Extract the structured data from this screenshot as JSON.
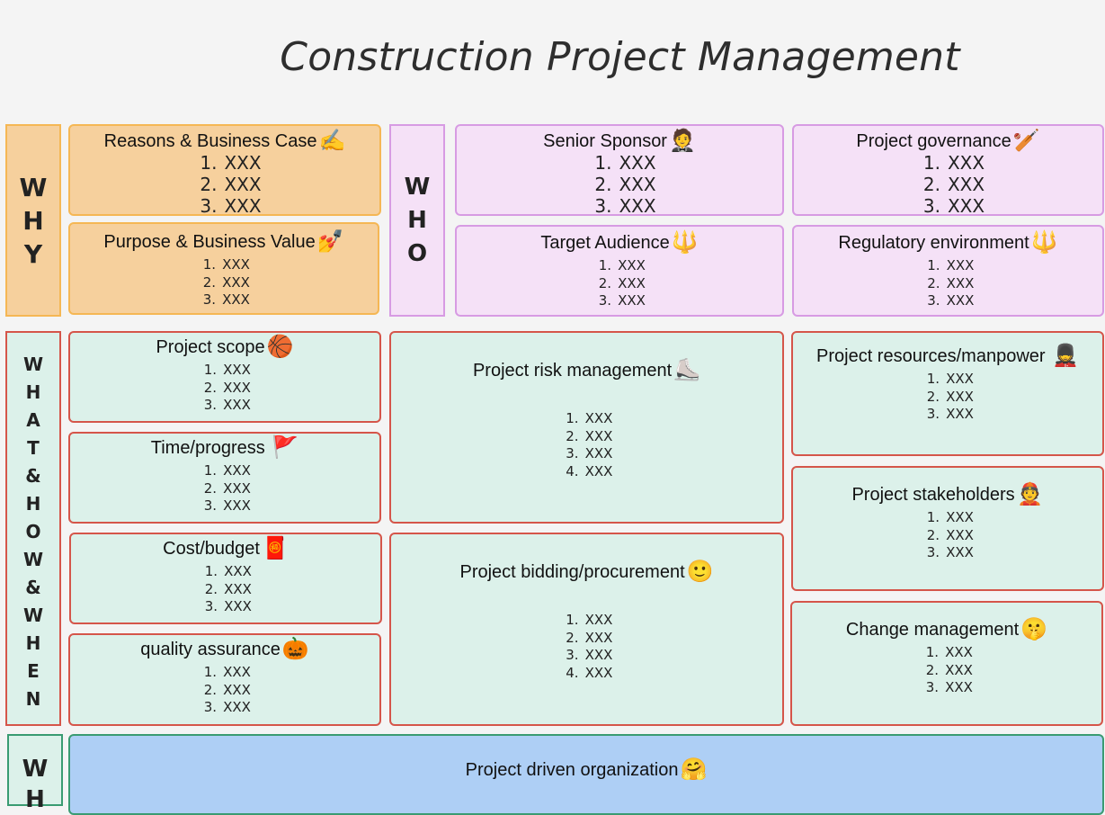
{
  "title": "Construction Project Management",
  "labels": {
    "why": [
      "W",
      "H",
      "Y"
    ],
    "who": [
      "W",
      "H",
      "O"
    ],
    "what": [
      "W",
      "H",
      "A",
      "T",
      "&",
      "H",
      "O",
      "W",
      "&",
      "W",
      "H",
      "E",
      "N"
    ],
    "bottom": [
      "W",
      "H"
    ]
  },
  "boxes": {
    "reasons": {
      "title": "Reasons & Business Case",
      "emoji": "✍️",
      "items": [
        {
          "n": "1.",
          "t": "XXX"
        },
        {
          "n": "2.",
          "t": "XXX"
        },
        {
          "n": "3.",
          "t": "XXX"
        }
      ]
    },
    "purpose": {
      "title": "Purpose & Business Value",
      "emoji": "💅",
      "items": [
        {
          "n": "1.",
          "t": "XXX"
        },
        {
          "n": "2.",
          "t": "XXX"
        },
        {
          "n": "3.",
          "t": "XXX"
        }
      ]
    },
    "sponsor": {
      "title": "Senior Sponsor",
      "emoji": "🤵",
      "items": [
        {
          "n": "1.",
          "t": "XXX"
        },
        {
          "n": "2.",
          "t": "XXX"
        },
        {
          "n": "3.",
          "t": "XXX"
        }
      ]
    },
    "governance": {
      "title": "Project governance",
      "emoji": "🏏",
      "items": [
        {
          "n": "1.",
          "t": "XXX"
        },
        {
          "n": "2.",
          "t": "XXX"
        },
        {
          "n": "3.",
          "t": "XXX"
        }
      ]
    },
    "audience": {
      "title": "Target Audience",
      "emoji": "🔱",
      "items": [
        {
          "n": "1.",
          "t": "XXX"
        },
        {
          "n": "2.",
          "t": "XXX"
        },
        {
          "n": "3.",
          "t": "XXX"
        }
      ]
    },
    "regulatory": {
      "title": "Regulatory environment",
      "emoji": "🔱",
      "items": [
        {
          "n": "1.",
          "t": "XXX"
        },
        {
          "n": "2.",
          "t": "XXX"
        },
        {
          "n": "3.",
          "t": "XXX"
        }
      ]
    },
    "scope": {
      "title": "Project scope",
      "emoji": "🏀",
      "items": [
        {
          "n": "1.",
          "t": "XXX"
        },
        {
          "n": "2.",
          "t": "XXX"
        },
        {
          "n": "3.",
          "t": "XXX"
        }
      ]
    },
    "time": {
      "title": "Time/progress ",
      "emoji": "🚩",
      "items": [
        {
          "n": "1.",
          "t": "XXX"
        },
        {
          "n": "2.",
          "t": "XXX"
        },
        {
          "n": "3.",
          "t": "XXX"
        }
      ]
    },
    "cost": {
      "title": "Cost/budget",
      "emoji": "🧧",
      "items": [
        {
          "n": "1.",
          "t": "XXX"
        },
        {
          "n": "2.",
          "t": "XXX"
        },
        {
          "n": "3.",
          "t": "XXX"
        }
      ]
    },
    "quality": {
      "title": "quality assurance",
      "emoji": "🎃",
      "items": [
        {
          "n": "1.",
          "t": "XXX"
        },
        {
          "n": "2.",
          "t": "XXX"
        },
        {
          "n": "3.",
          "t": "XXX"
        }
      ]
    },
    "risk": {
      "title": "Project risk management",
      "emoji": "⛸️",
      "items": [
        {
          "n": "1.",
          "t": "XXX"
        },
        {
          "n": "2.",
          "t": "XXX"
        },
        {
          "n": "3.",
          "t": "XXX"
        },
        {
          "n": "4.",
          "t": "XXX"
        }
      ]
    },
    "bidding": {
      "title": "Project bidding/procurement",
      "emoji": "🙂",
      "items": [
        {
          "n": "1.",
          "t": "XXX"
        },
        {
          "n": "2.",
          "t": "XXX"
        },
        {
          "n": "3.",
          "t": "XXX"
        },
        {
          "n": "4.",
          "t": "XXX"
        }
      ]
    },
    "resources": {
      "title": "Project resources/manpower ",
      "emoji": "💂",
      "items": [
        {
          "n": "1.",
          "t": "XXX"
        },
        {
          "n": "2.",
          "t": "XXX"
        },
        {
          "n": "3.",
          "t": "XXX"
        }
      ]
    },
    "stakeholders": {
      "title": "Project stakeholders",
      "emoji": "👲",
      "items": [
        {
          "n": "1.",
          "t": "XXX"
        },
        {
          "n": "2.",
          "t": "XXX"
        },
        {
          "n": "3.",
          "t": "XXX"
        }
      ]
    },
    "change": {
      "title": "Change management",
      "emoji": "🤫",
      "items": [
        {
          "n": "1.",
          "t": "XXX"
        },
        {
          "n": "2.",
          "t": "XXX"
        },
        {
          "n": "3.",
          "t": "XXX"
        }
      ]
    },
    "organization": {
      "title": "Project driven organization",
      "emoji": "🤗",
      "items": []
    }
  }
}
